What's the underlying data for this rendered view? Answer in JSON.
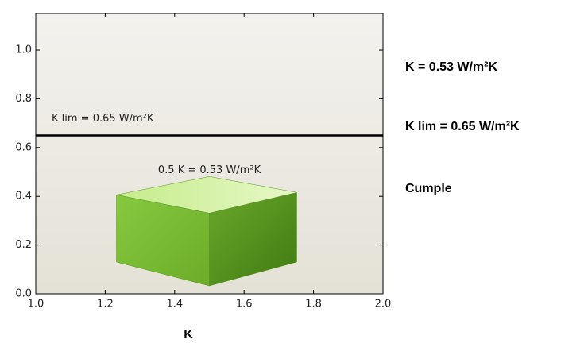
{
  "chart_data": {
    "type": "bar",
    "x": [
      1.5
    ],
    "values": [
      0.53
    ],
    "annotation": "0.5 K = 0.53 W/m²K",
    "limit": {
      "value": 0.65,
      "label": "K lim = 0.65 W/m²K"
    },
    "xlabel": "K",
    "xlim": [
      1,
      2
    ],
    "xticks": [
      {
        "value": 1,
        "label": "1.0"
      },
      1.2,
      1.4,
      1.6,
      1.8,
      {
        "value": 2,
        "label": "2.0"
      }
    ],
    "ylim": [
      0,
      1.15
    ],
    "yticks": [
      {
        "value": 0,
        "label": "0.0"
      },
      0.2,
      0.4,
      0.6,
      0.8,
      {
        "value": 1,
        "label": "1.0"
      }
    ],
    "side_texts": [
      "K = 0.53 W/m²K",
      "K lim = 0.65 W/m²K",
      "Cumple"
    ]
  }
}
